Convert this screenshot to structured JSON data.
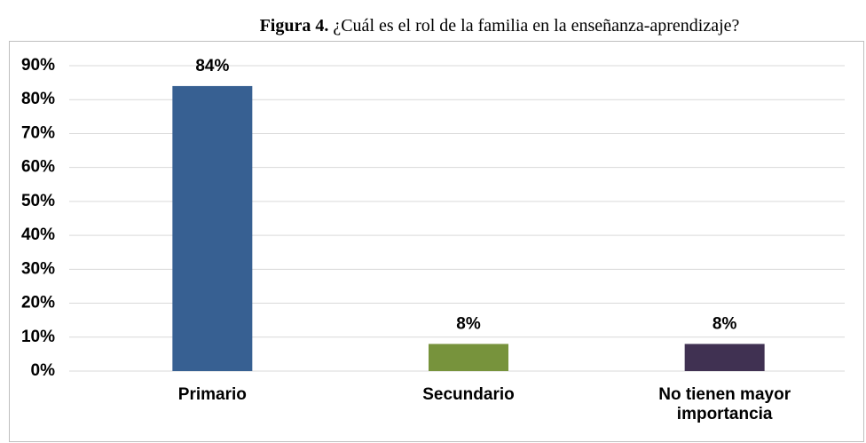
{
  "chart_data": {
    "type": "bar",
    "figure_label": "Figura 4.",
    "title": "¿Cuál es el rol de la familia en la enseñanza-aprendizaje?",
    "categories": [
      "Primario",
      "Secundario",
      "No tienen mayor importancia"
    ],
    "values": [
      84,
      8,
      8
    ],
    "value_labels": [
      "84%",
      "8%",
      "8%"
    ],
    "colors": [
      "#376092",
      "#77933c",
      "#403152"
    ],
    "ylim": [
      0,
      90
    ],
    "yticks": [
      {
        "value": 0,
        "label": "0%"
      },
      {
        "value": 10,
        "label": "10%"
      },
      {
        "value": 20,
        "label": "20%"
      },
      {
        "value": 30,
        "label": "30%"
      },
      {
        "value": 40,
        "label": "40%"
      },
      {
        "value": 50,
        "label": "50%"
      },
      {
        "value": 60,
        "label": "60%"
      },
      {
        "value": 70,
        "label": "70%"
      },
      {
        "value": 80,
        "label": "80%"
      },
      {
        "value": 90,
        "label": "90%"
      }
    ],
    "grid": true
  }
}
